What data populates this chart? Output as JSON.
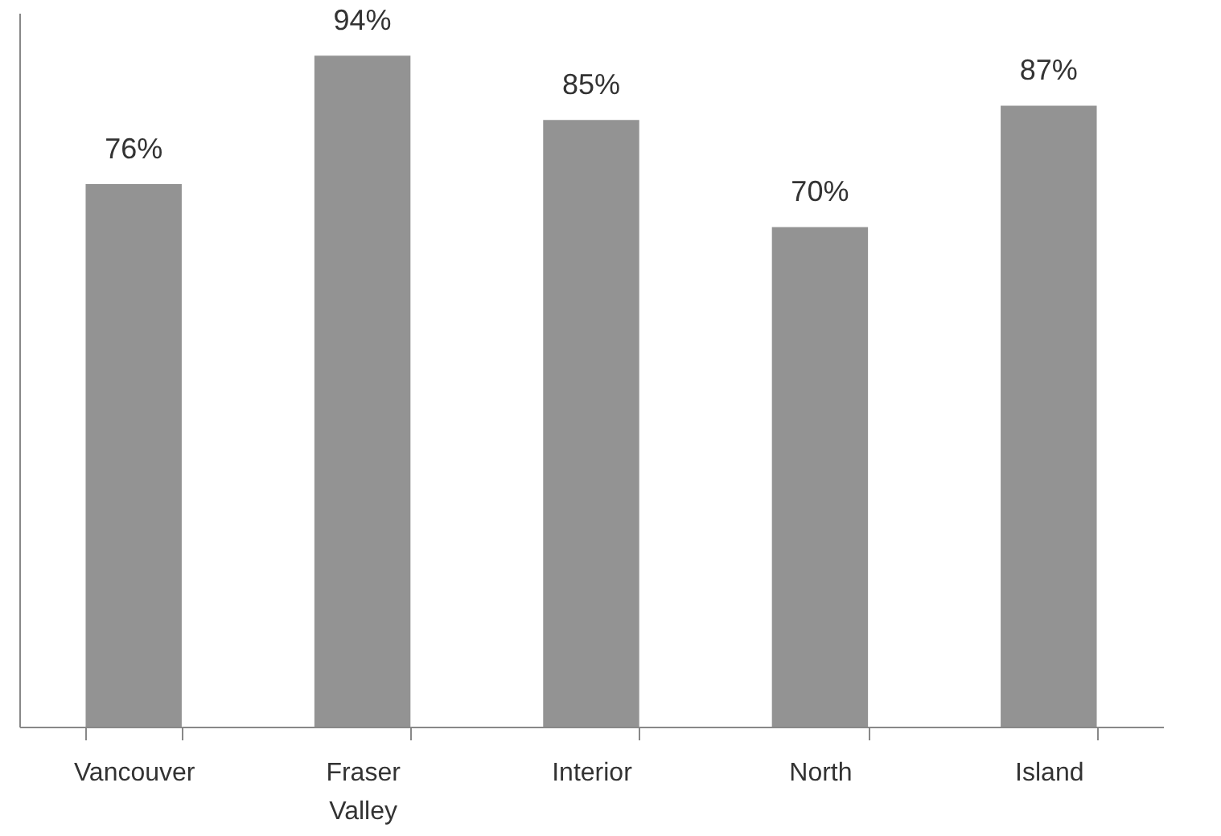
{
  "chart_data": {
    "type": "bar",
    "categories": [
      "Vancouver",
      "Fraser Valley",
      "Interior",
      "North",
      "Island"
    ],
    "values": [
      76,
      94,
      85,
      70,
      87
    ],
    "color": "#939393",
    "value_labels": [
      "76%",
      "94%",
      "85%",
      "70%",
      "87%"
    ],
    "ylim": [
      0,
      100
    ],
    "tick_labels": "x"
  }
}
